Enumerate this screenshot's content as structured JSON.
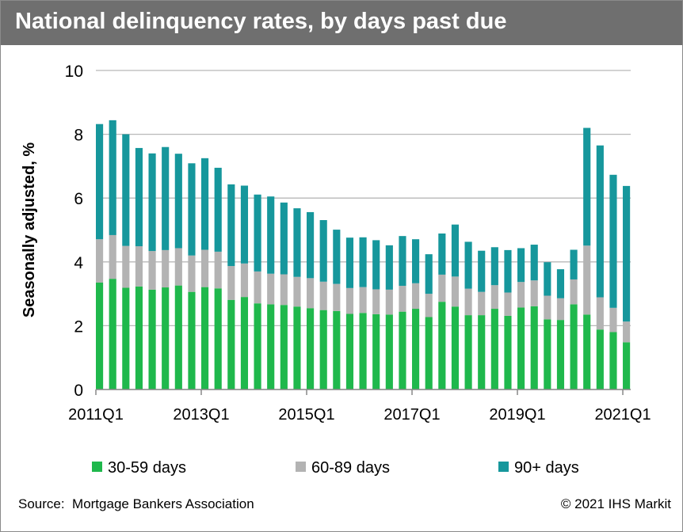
{
  "title": "National delinquency rates, by days past due",
  "footer": {
    "source": "Source:  Mortgage Bankers Association",
    "copyright": "© 2021 IHS Markit"
  },
  "colors": {
    "title_bg": "#6f6f6f",
    "series_30_59": "#1fb84c",
    "series_60_89": "#b3b3b3",
    "series_90_plus": "#16979c",
    "grid": "#b8b8b8"
  },
  "chart_data": {
    "type": "bar",
    "stacked": true,
    "ylabel": "Seasonally adjusted, %",
    "xlabel": "",
    "ylim": [
      0,
      10
    ],
    "y_ticks": [
      "0",
      "2",
      "4",
      "6",
      "8",
      "10"
    ],
    "x_tick_labels": [
      "2011Q1",
      "2013Q1",
      "2015Q1",
      "2017Q1",
      "2019Q1",
      "2021Q1"
    ],
    "grid": true,
    "legend_position": "bottom",
    "categories": [
      "2011Q1",
      "2011Q2",
      "2011Q3",
      "2011Q4",
      "2012Q1",
      "2012Q2",
      "2012Q3",
      "2012Q4",
      "2013Q1",
      "2013Q2",
      "2013Q3",
      "2013Q4",
      "2014Q1",
      "2014Q2",
      "2014Q3",
      "2014Q4",
      "2015Q1",
      "2015Q2",
      "2015Q3",
      "2015Q4",
      "2016Q1",
      "2016Q2",
      "2016Q3",
      "2016Q4",
      "2017Q1",
      "2017Q2",
      "2017Q3",
      "2017Q4",
      "2018Q1",
      "2018Q2",
      "2018Q3",
      "2018Q4",
      "2019Q1",
      "2019Q2",
      "2019Q3",
      "2019Q4",
      "2020Q1",
      "2020Q2",
      "2020Q3",
      "2020Q4",
      "2021Q1"
    ],
    "series": [
      {
        "name": "30-59 days",
        "values": [
          3.35,
          3.47,
          3.19,
          3.23,
          3.13,
          3.2,
          3.26,
          3.06,
          3.21,
          3.17,
          2.81,
          2.9,
          2.7,
          2.67,
          2.65,
          2.6,
          2.55,
          2.49,
          2.46,
          2.37,
          2.4,
          2.36,
          2.35,
          2.44,
          2.53,
          2.27,
          2.75,
          2.6,
          2.33,
          2.33,
          2.53,
          2.31,
          2.57,
          2.61,
          2.2,
          2.18,
          2.67,
          2.35,
          1.88,
          1.8,
          1.48
        ]
      },
      {
        "name": "60-89 days",
        "values": [
          1.36,
          1.37,
          1.31,
          1.26,
          1.21,
          1.17,
          1.17,
          1.14,
          1.17,
          1.15,
          1.06,
          1.05,
          1.0,
          0.96,
          0.96,
          0.93,
          0.94,
          0.89,
          0.85,
          0.81,
          0.81,
          0.78,
          0.78,
          0.81,
          0.8,
          0.73,
          0.85,
          0.94,
          0.83,
          0.73,
          0.74,
          0.73,
          0.8,
          0.81,
          0.74,
          0.68,
          0.78,
          2.16,
          1.01,
          0.76,
          0.65
        ]
      },
      {
        "name": "90+ days",
        "values": [
          3.61,
          3.6,
          3.5,
          3.08,
          3.06,
          3.23,
          2.96,
          2.89,
          2.87,
          2.63,
          2.56,
          2.44,
          2.41,
          2.42,
          2.25,
          2.15,
          2.07,
          1.93,
          1.7,
          1.58,
          1.56,
          1.54,
          1.39,
          1.56,
          1.38,
          1.24,
          1.29,
          1.63,
          1.47,
          1.29,
          1.19,
          1.33,
          1.06,
          1.12,
          1.05,
          0.91,
          0.93,
          3.69,
          4.76,
          4.17,
          4.25
        ]
      }
    ]
  }
}
